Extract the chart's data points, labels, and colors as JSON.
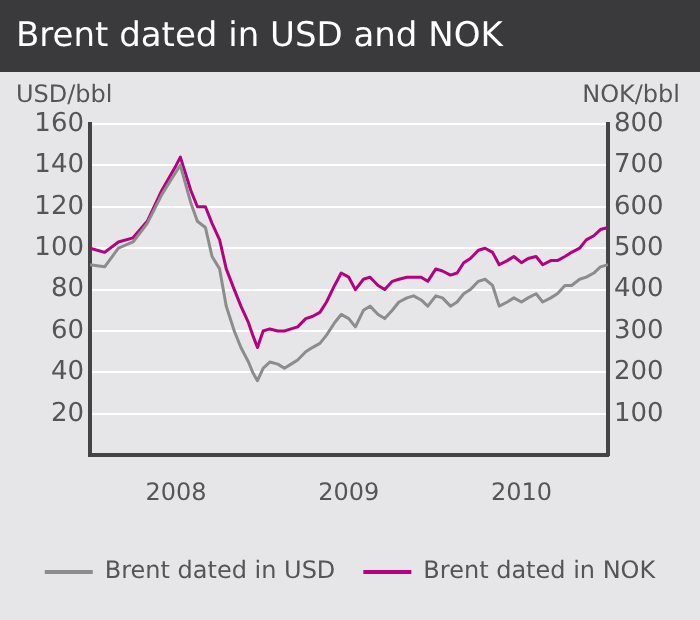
{
  "chart_data": {
    "type": "line",
    "title": "Brent dated in USD and NOK",
    "ylabel": "USD/bbl",
    "y2label": "NOK/bbl",
    "x": [
      "2008-01-01",
      "2008-02-01",
      "2008-03-01",
      "2008-04-01",
      "2008-05-01",
      "2008-06-01",
      "2008-07-01",
      "2008-07-10",
      "2008-08-01",
      "2008-08-15",
      "2008-09-01",
      "2008-09-15",
      "2008-10-01",
      "2008-10-15",
      "2008-11-01",
      "2008-11-15",
      "2008-12-01",
      "2008-12-10",
      "2008-12-20",
      "2009-01-01",
      "2009-01-15",
      "2009-02-01",
      "2009-02-15",
      "2009-03-01",
      "2009-03-15",
      "2009-04-01",
      "2009-04-15",
      "2009-05-01",
      "2009-05-15",
      "2009-06-01",
      "2009-06-15",
      "2009-07-01",
      "2009-07-15",
      "2009-08-01",
      "2009-08-15",
      "2009-09-01",
      "2009-09-15",
      "2009-10-01",
      "2009-10-15",
      "2009-11-01",
      "2009-11-15",
      "2009-12-01",
      "2009-12-15",
      "2010-01-01",
      "2010-01-15",
      "2010-02-01",
      "2010-02-15",
      "2010-03-01",
      "2010-03-15",
      "2010-04-01",
      "2010-04-15",
      "2010-05-01",
      "2010-05-15",
      "2010-06-01",
      "2010-06-15",
      "2010-07-01",
      "2010-07-15",
      "2010-08-01",
      "2010-08-15",
      "2010-09-01",
      "2010-09-15",
      "2010-10-01",
      "2010-10-15",
      "2010-11-01",
      "2010-11-15",
      "2010-12-01",
      "2010-12-15",
      "2010-12-31"
    ],
    "series": [
      {
        "name": "Brent dated in USD",
        "color": "#8c8c8c",
        "values": [
          92,
          91,
          100,
          103,
          112,
          126,
          137,
          140,
          122,
          113,
          110,
          96,
          90,
          72,
          60,
          52,
          45,
          40,
          36,
          42,
          45,
          44,
          42,
          44,
          46,
          50,
          52,
          54,
          58,
          64,
          68,
          66,
          62,
          70,
          72,
          68,
          66,
          70,
          74,
          76,
          77,
          75,
          72,
          77,
          76,
          72,
          74,
          78,
          80,
          84,
          85,
          82,
          72,
          74,
          76,
          74,
          76,
          78,
          74,
          76,
          78,
          82,
          82,
          85,
          86,
          88,
          91,
          92
        ]
      },
      {
        "name": "Brent dated in NOK",
        "color": "#b5007f",
        "axis": "y2",
        "values": [
          500,
          490,
          515,
          525,
          565,
          640,
          700,
          720,
          640,
          600,
          600,
          560,
          520,
          450,
          400,
          360,
          320,
          290,
          260,
          300,
          305,
          300,
          300,
          305,
          310,
          330,
          335,
          345,
          370,
          410,
          440,
          430,
          400,
          425,
          430,
          410,
          400,
          420,
          425,
          430,
          430,
          430,
          420,
          450,
          445,
          435,
          440,
          465,
          475,
          495,
          500,
          490,
          460,
          470,
          480,
          465,
          475,
          480,
          460,
          470,
          470,
          480,
          490,
          500,
          520,
          530,
          545,
          550
        ]
      }
    ],
    "xlim": [
      "2008-01-01",
      "2010-12-31"
    ],
    "xticks": [
      {
        "value": "2008-07-01",
        "label": "2008"
      },
      {
        "value": "2009-07-01",
        "label": "2009"
      },
      {
        "value": "2010-07-01",
        "label": "2010"
      }
    ],
    "ylim": [
      0,
      160
    ],
    "yticks": [
      20,
      40,
      60,
      80,
      100,
      120,
      140,
      160
    ],
    "y2lim": [
      0,
      800
    ],
    "y2ticks": [
      100,
      200,
      300,
      400,
      500,
      600,
      700,
      800
    ],
    "grid": "y",
    "legend": "bottom",
    "marker": "none",
    "line_style": "solid"
  }
}
